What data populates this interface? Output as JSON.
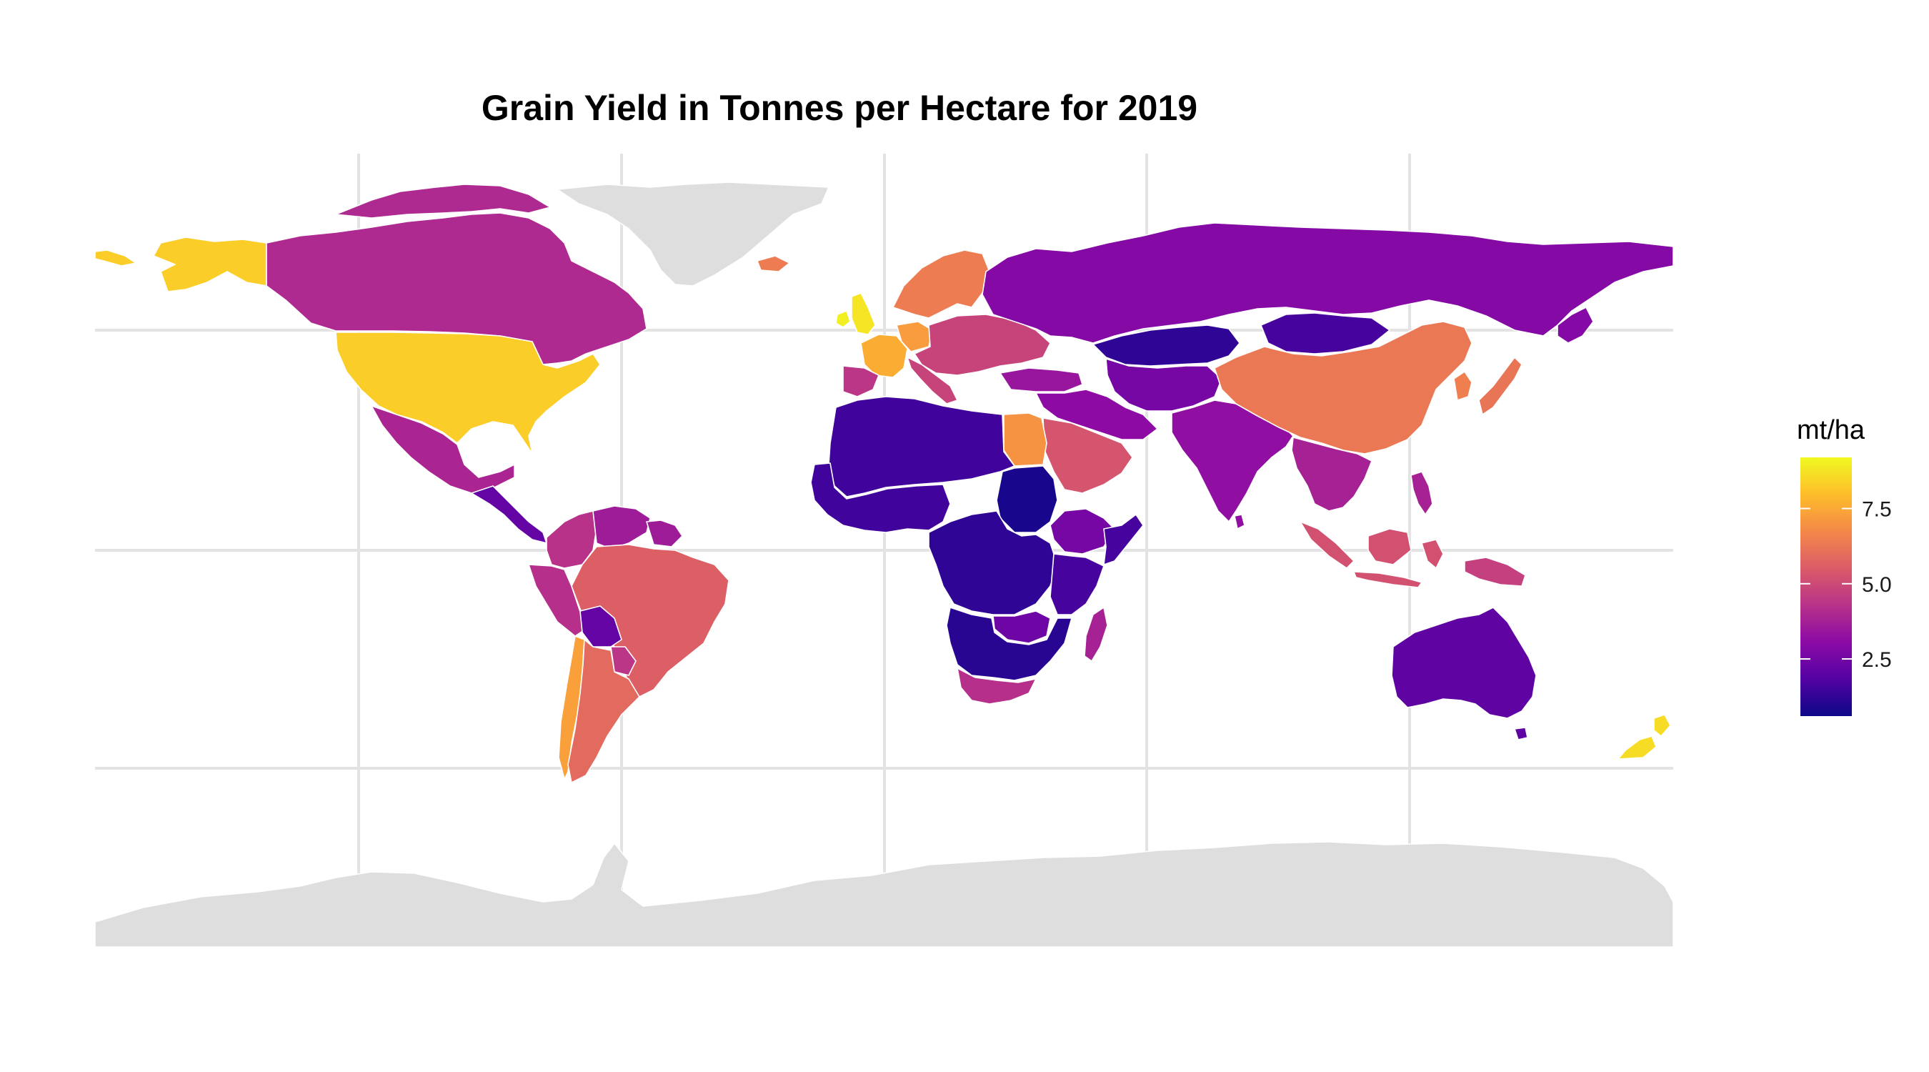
{
  "title": "Grain Yield in Tonnes per Hectare for 2019",
  "legend": {
    "title": "mt/ha",
    "ticks": [
      {
        "value": 2.5,
        "label": "2.5"
      },
      {
        "value": 5.0,
        "label": "5.0"
      },
      {
        "value": 7.5,
        "label": "7.5"
      }
    ],
    "min": 0.6,
    "max": 9.2,
    "palette": [
      "#0d0887",
      "#5302a3",
      "#8b0aa5",
      "#b83289",
      "#db5c68",
      "#f48849",
      "#febd2a",
      "#f0f921"
    ],
    "no_data_color": "#dedede"
  },
  "chart_data": {
    "type": "choropleth",
    "title": "Grain Yield in Tonnes per Hectare for 2019",
    "value_label": "mt/ha",
    "scale": {
      "palette": "plasma",
      "min": 0.6,
      "max": 9.2,
      "ticks": [
        2.5,
        5.0,
        7.5
      ]
    },
    "grid": true,
    "legend_position": "right",
    "regions": [
      {
        "name": "United States",
        "value": 8.3
      },
      {
        "name": "Canada",
        "value": 4.0
      },
      {
        "name": "Mexico",
        "value": 3.9
      },
      {
        "name": "Central America",
        "value": 2.2
      },
      {
        "name": "Colombia",
        "value": 4.3
      },
      {
        "name": "Venezuela",
        "value": 3.6
      },
      {
        "name": "Peru",
        "value": 4.2
      },
      {
        "name": "Brazil",
        "value": 5.6
      },
      {
        "name": "Bolivia",
        "value": 2.2
      },
      {
        "name": "Paraguay",
        "value": 4.4
      },
      {
        "name": "Chile",
        "value": 7.3
      },
      {
        "name": "Argentina",
        "value": 5.9
      },
      {
        "name": "Greenland",
        "value": null
      },
      {
        "name": "Antarctica",
        "value": null
      },
      {
        "name": "United Kingdom",
        "value": 8.8
      },
      {
        "name": "Ireland",
        "value": 9.0
      },
      {
        "name": "France",
        "value": 7.6
      },
      {
        "name": "Spain",
        "value": 4.4
      },
      {
        "name": "Germany",
        "value": 7.2
      },
      {
        "name": "Scandinavia",
        "value": 6.4
      },
      {
        "name": "Eastern Europe",
        "value": 4.8
      },
      {
        "name": "Russia",
        "value": 2.9
      },
      {
        "name": "Kazakhstan",
        "value": 1.2
      },
      {
        "name": "Mongolia",
        "value": 1.6
      },
      {
        "name": "Turkey",
        "value": 3.4
      },
      {
        "name": "Central Asia",
        "value": 2.6
      },
      {
        "name": "Middle East",
        "value": 3.1
      },
      {
        "name": "Egypt",
        "value": 7.0
      },
      {
        "name": "Saudi Arabia",
        "value": 5.3
      },
      {
        "name": "China",
        "value": 6.3
      },
      {
        "name": "India",
        "value": 3.2
      },
      {
        "name": "Southeast Asia",
        "value": 3.8
      },
      {
        "name": "Japan",
        "value": 6.2
      },
      {
        "name": "Korea",
        "value": 6.5
      },
      {
        "name": "Indonesia",
        "value": 5.2
      },
      {
        "name": "Papua New Guinea",
        "value": 4.7
      },
      {
        "name": "Australia",
        "value": 2.1
      },
      {
        "name": "New Zealand",
        "value": 8.6
      },
      {
        "name": "North Africa",
        "value": 1.5
      },
      {
        "name": "West Africa",
        "value": 1.5
      },
      {
        "name": "Central Africa",
        "value": 1.2
      },
      {
        "name": "Sudan",
        "value": 0.8
      },
      {
        "name": "Ethiopia",
        "value": 2.6
      },
      {
        "name": "East Africa",
        "value": 1.6
      },
      {
        "name": "Southern Africa",
        "value": 1.1
      },
      {
        "name": "Zambia",
        "value": 2.4
      },
      {
        "name": "South Africa",
        "value": 4.2
      },
      {
        "name": "Madagascar",
        "value": 3.8
      }
    ]
  }
}
